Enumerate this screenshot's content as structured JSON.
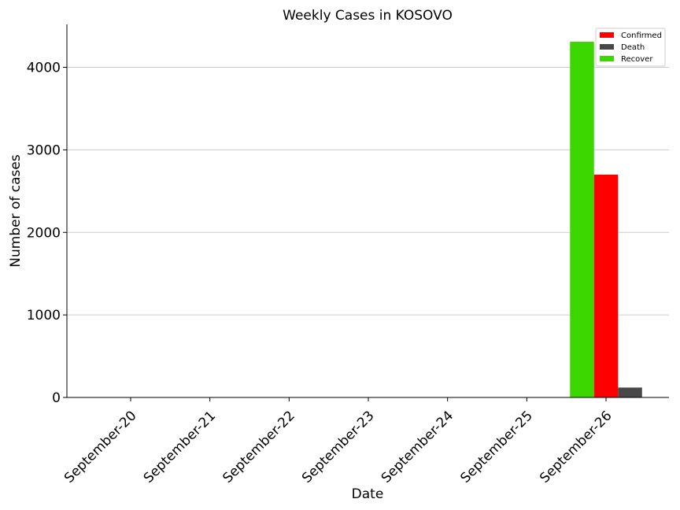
{
  "chart_data": {
    "type": "bar",
    "title": "Weekly Cases in KOSOVO",
    "xlabel": "Date",
    "ylabel": "Number of cases",
    "categories": [
      "September-20",
      "September-21",
      "September-22",
      "September-23",
      "September-24",
      "September-25",
      "September-26"
    ],
    "series": [
      {
        "name": "Recover",
        "color": "#3cd700",
        "values": [
          0,
          0,
          0,
          0,
          0,
          0,
          4310
        ]
      },
      {
        "name": "Confirmed",
        "color": "#ff0000",
        "values": [
          0,
          0,
          0,
          0,
          0,
          0,
          2700
        ]
      },
      {
        "name": "Death",
        "color": "#484848",
        "values": [
          0,
          0,
          0,
          0,
          0,
          0,
          120
        ]
      }
    ],
    "legend": [
      {
        "name": "Confirmed",
        "color": "#ff0000"
      },
      {
        "name": "Death",
        "color": "#484848"
      },
      {
        "name": "Recover",
        "color": "#3cd700"
      }
    ],
    "yticks": [
      0,
      1000,
      2000,
      3000,
      4000
    ],
    "ylim": [
      0,
      4520
    ],
    "grid": "horizontal",
    "legend_position": "top-right"
  }
}
